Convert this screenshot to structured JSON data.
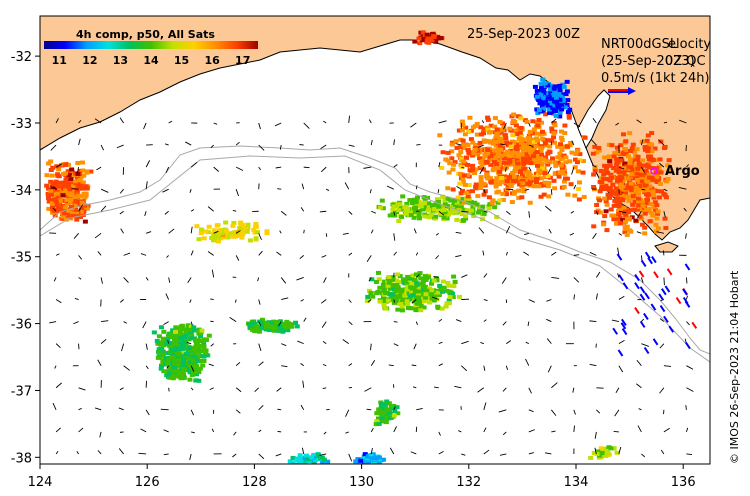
{
  "map": {
    "date": "25-Sep-2023 00Z",
    "lon_ticks": [
      "124",
      "126",
      "128",
      "130",
      "132",
      "134",
      "136"
    ],
    "lat_ticks": [
      "-32",
      "-33",
      "-34",
      "-35",
      "-36",
      "-37",
      "-38"
    ],
    "lon_range": [
      124,
      136.5
    ],
    "lat_range": [
      -38.1,
      -31.4
    ],
    "colors": {
      "land": "#fcc996",
      "ocean": "#ffffff",
      "coast": "#000000",
      "isobath": "#a8a8a8",
      "arrow": "#000000"
    }
  },
  "legend": {
    "title": "4h comp, p50, All Sats",
    "ticks": [
      "11",
      "12",
      "13",
      "14",
      "15",
      "16",
      "17"
    ],
    "range_c": [
      10.5,
      17.5
    ],
    "colors": [
      "#00008b",
      "#0000ff",
      "#00a0ff",
      "#00e0e0",
      "#00c060",
      "#40c000",
      "#c0e000",
      "#ffd000",
      "#ff9000",
      "#ff4000",
      "#a00000"
    ]
  },
  "overlay": {
    "line1a": "NRT00dGSL",
    "line1b": "elocity",
    "line2a": "(25-Sep-2023)",
    "line2b": "0Z QC",
    "line3": "0.5m/s (1kt 24h)"
  },
  "argo": {
    "label": "Argo",
    "color": "#ff00ff"
  },
  "credit": "© IMOS 26-Sep-2023 21:04 Hobart"
}
